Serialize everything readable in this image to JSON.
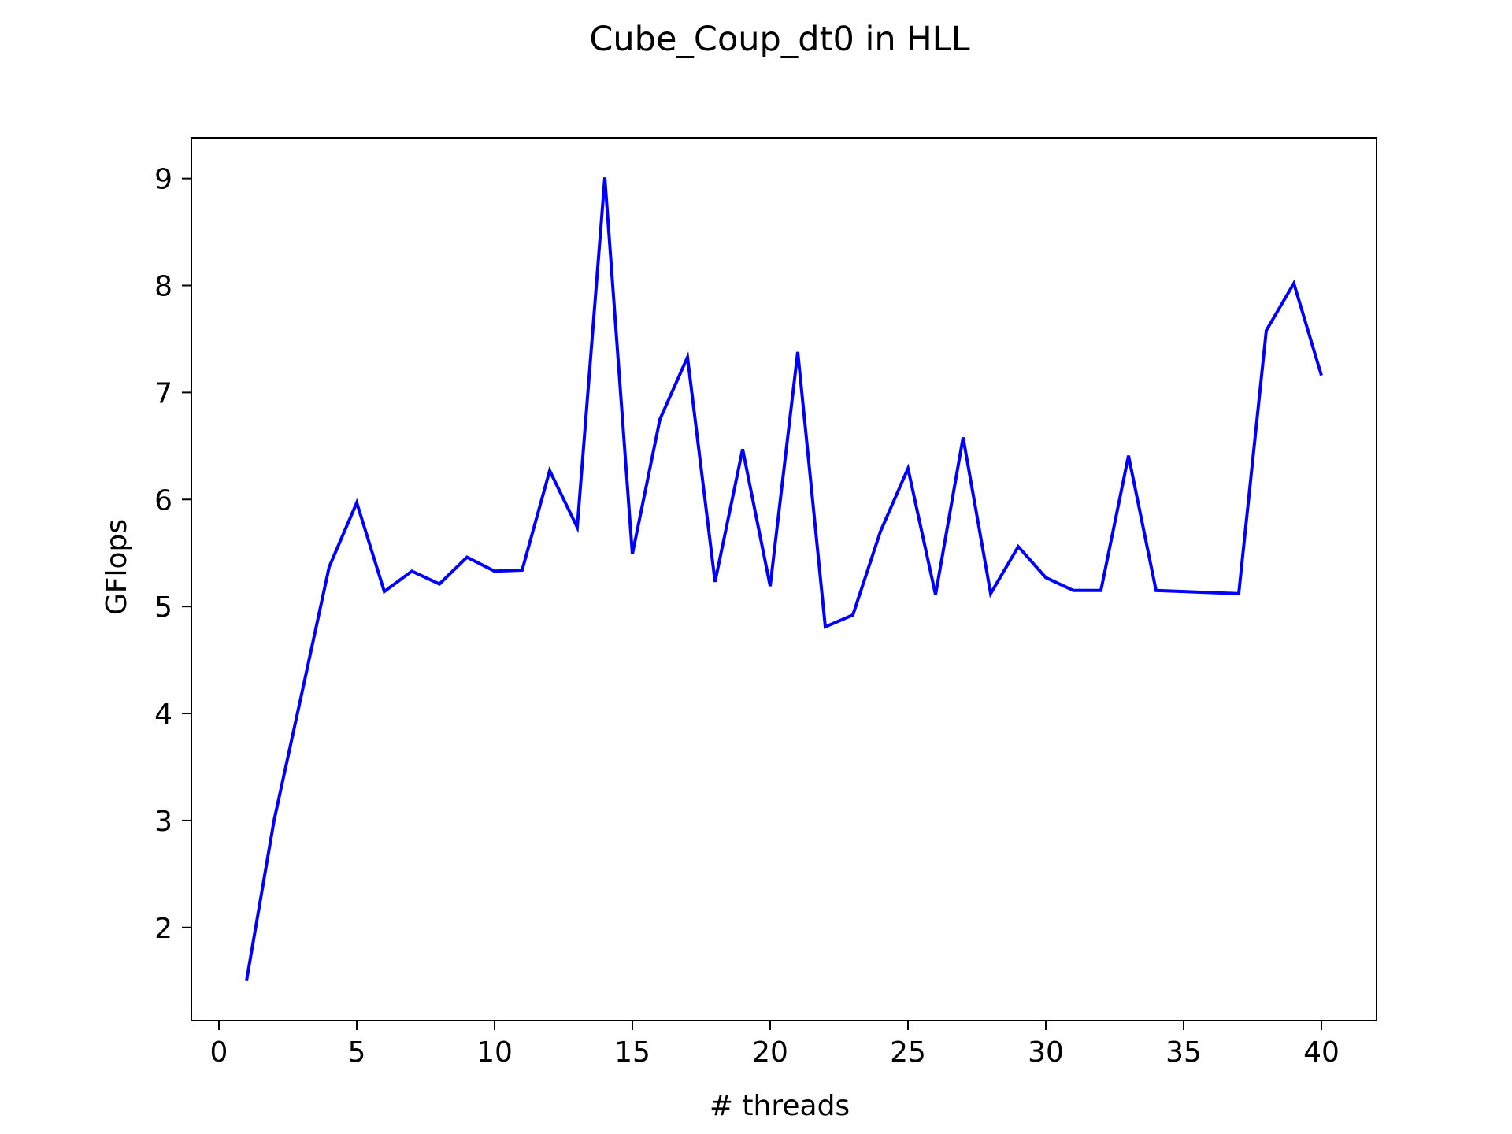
{
  "chart_data": {
    "type": "line",
    "title": "Cube_Coup_dt0 in HLL",
    "xlabel": "# threads",
    "ylabel": "GFlops",
    "xlim": [
      -1,
      42
    ],
    "ylim": [
      1.13,
      9.38
    ],
    "grid": false,
    "x_ticks": [
      0,
      5,
      10,
      15,
      20,
      25,
      30,
      35,
      40
    ],
    "y_ticks": [
      2,
      3,
      4,
      5,
      6,
      7,
      8,
      9
    ],
    "series": [
      {
        "color": "#0000ff",
        "x": [
          1,
          2,
          3,
          4,
          5,
          6,
          7,
          8,
          9,
          10,
          11,
          12,
          13,
          14,
          15,
          16,
          17,
          18,
          19,
          20,
          21,
          22,
          23,
          24,
          25,
          26,
          27,
          28,
          29,
          30,
          31,
          32,
          33,
          34,
          35,
          36,
          37,
          38,
          39,
          40
        ],
        "values": [
          1.5,
          3.0,
          4.18,
          5.37,
          5.97,
          5.14,
          5.33,
          5.21,
          5.46,
          5.33,
          5.34,
          6.27,
          5.74,
          9.01,
          5.49,
          6.75,
          7.33,
          5.23,
          6.47,
          5.19,
          7.38,
          4.81,
          4.92,
          5.7,
          6.29,
          5.11,
          6.58,
          5.12,
          5.56,
          5.27,
          5.15,
          5.15,
          6.41,
          5.15,
          5.14,
          5.13,
          5.12,
          7.58,
          8.02,
          7.16
        ]
      }
    ]
  }
}
